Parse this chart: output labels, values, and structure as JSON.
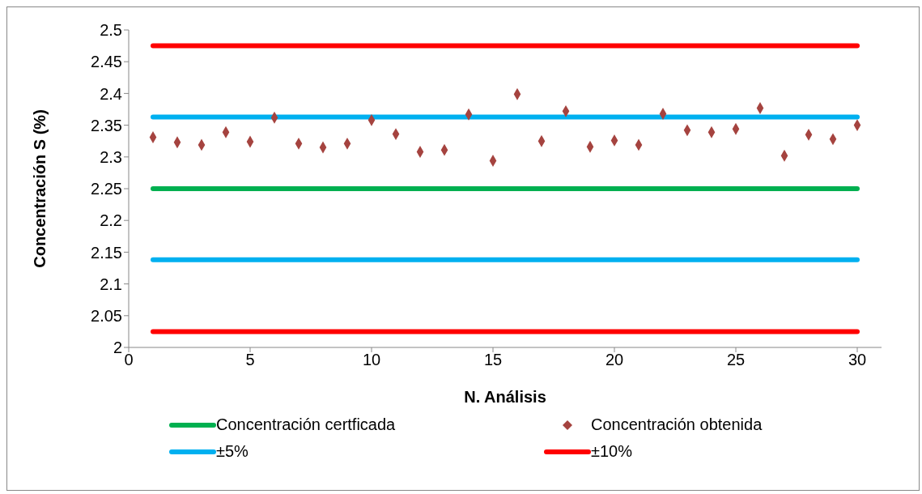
{
  "chart_data": {
    "type": "scatter",
    "xlabel": "N. Análisis",
    "ylabel": "Concentración S (%)",
    "xlim": [
      0,
      31
    ],
    "xticks": [
      0,
      5,
      10,
      15,
      20,
      25,
      30
    ],
    "ylim": [
      2,
      2.5
    ],
    "yticks": [
      2,
      2.05,
      2.1,
      2.15,
      2.2,
      2.25,
      2.3,
      2.35,
      2.4,
      2.45,
      2.5
    ],
    "grid": false,
    "legend": "bottom",
    "series": [
      {
        "type": "line",
        "name": "Concentración certficada",
        "color": "#00b050",
        "x": [
          1,
          30
        ],
        "values": [
          2.25,
          2.25
        ],
        "marker": "none"
      },
      {
        "name": "Concentración obtenida",
        "color": "#a5433f",
        "marker": "diamond",
        "x": [
          1,
          2,
          3,
          4,
          5,
          6,
          7,
          8,
          9,
          10,
          11,
          12,
          13,
          14,
          15,
          16,
          17,
          18,
          19,
          20,
          21,
          22,
          23,
          24,
          25,
          26,
          27,
          28,
          29,
          30
        ],
        "values": [
          2.331,
          2.323,
          2.319,
          2.339,
          2.324,
          2.362,
          2.321,
          2.315,
          2.321,
          2.358,
          2.336,
          2.308,
          2.311,
          2.367,
          2.294,
          2.399,
          2.325,
          2.372,
          2.316,
          2.326,
          2.319,
          2.368,
          2.342,
          2.339,
          2.344,
          2.377,
          2.302,
          2.335,
          2.328,
          2.35
        ]
      },
      {
        "type": "line",
        "name": "±5%",
        "color": "#00b0f0",
        "x": [
          1,
          30
        ],
        "values": [
          2.363,
          2.363
        ],
        "marker": "none"
      },
      {
        "type": "line",
        "name": "±10%",
        "color": "#ff0000",
        "x": [
          1,
          30
        ],
        "values": [
          2.475,
          2.475
        ],
        "marker": "none"
      },
      {
        "type": "line",
        "color": "#00b0f0",
        "x": [
          1,
          30
        ],
        "values": [
          2.138,
          2.138
        ],
        "marker": "none"
      },
      {
        "type": "line",
        "color": "#ff0000",
        "x": [
          1,
          30
        ],
        "values": [
          2.025,
          2.025
        ],
        "marker": "none"
      }
    ]
  }
}
